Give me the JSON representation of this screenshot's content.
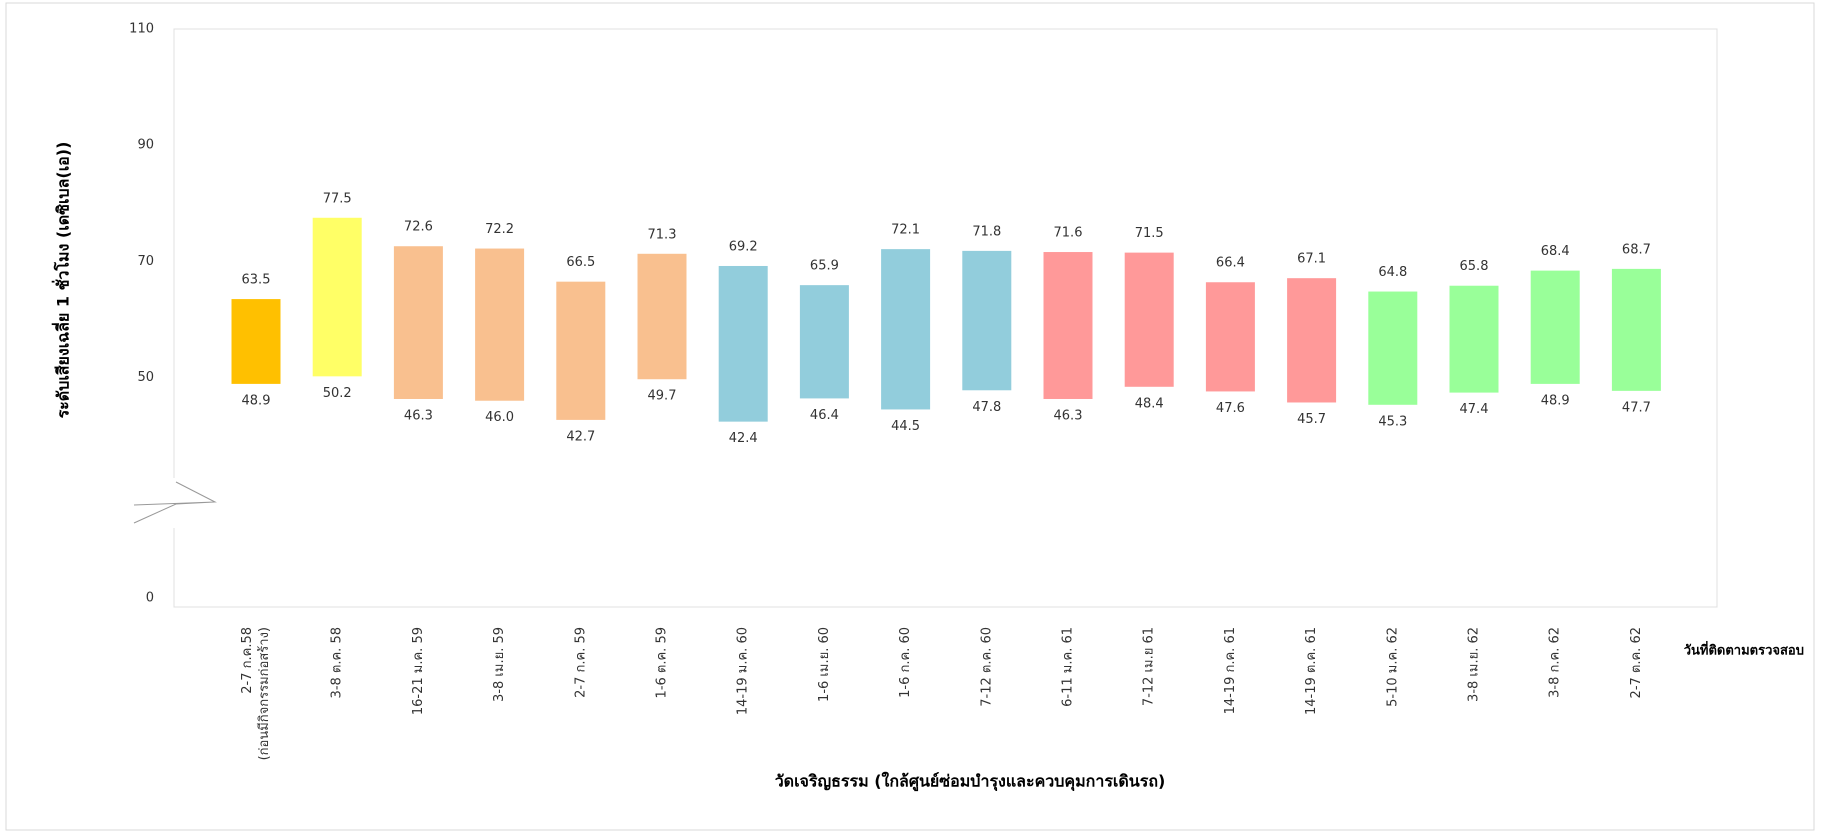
{
  "chart_data": {
    "type": "range_bar",
    "y_label": "ระดับเสียงเฉลี่ย 1 ชั่วโมง (เดซิเบล(เอ))",
    "x_label": "วัดเจริญธรรม (ใกล้ศูนย์ซ่อมบำรุงและควบคุมการเดินรถ)",
    "x_axis_note": "วันที่ติดตามตรวจสอบ",
    "categories": [
      [
        "2-7 ก.ค.58",
        "(ก่อนมีกิจกรรมก่อสร้าง)"
      ],
      "3-8 ต.ค. 58",
      "16-21 ม.ค. 59",
      "3-8 เม.ย. 59",
      "2-7 ก.ค. 59",
      "1-6 ต.ค. 59",
      "14-19 ม.ค. 60",
      "1-6 เม.ย. 60",
      "1-6 ก.ค. 60",
      "7-12 ต.ค. 60",
      "6-11 ม.ค. 61",
      "7-12 เม.ย 61",
      "14-19 ก.ค. 61",
      "14-19 ต.ค. 61",
      "5-10 ม.ค. 62",
      "3-8 เม.ย. 62",
      "3-8 ก.ค. 62",
      "2-7 ต.ค. 62"
    ],
    "colors": [
      "#ffc000",
      "#ffff66",
      "#f9c08f",
      "#f9c08f",
      "#f9c08f",
      "#f9c08f",
      "#92cddc",
      "#92cddc",
      "#92cddc",
      "#92cddc",
      "#ff9999",
      "#ff9999",
      "#ff9999",
      "#ff9999",
      "#99ff99",
      "#99ff99",
      "#99ff99",
      "#99ff99"
    ],
    "high": {
      "values": [
        63.5,
        77.5,
        72.6,
        72.2,
        66.5,
        71.3,
        69.2,
        65.9,
        72.1,
        71.8,
        71.6,
        71.5,
        66.4,
        67.1,
        64.8,
        65.8,
        68.4,
        68.7
      ],
      "value_labels": [
        "63.5",
        "77.5",
        "72.6",
        "72.2",
        "66.5",
        "71.3",
        "69.2",
        "65.9",
        "72.1",
        "71.8",
        "71.6",
        "71.5",
        "66.4",
        "67.1",
        "64.8",
        "65.8",
        "68.4",
        "68.7"
      ]
    },
    "low": {
      "values": [
        48.9,
        50.2,
        46.3,
        46.0,
        42.7,
        49.7,
        42.4,
        46.4,
        44.5,
        47.8,
        46.3,
        48.4,
        47.6,
        45.7,
        45.3,
        47.4,
        48.9,
        47.7
      ],
      "value_labels": [
        "48.9",
        "50.2",
        "46.3",
        "46.0",
        "42.7",
        "49.7",
        "42.4",
        "46.4",
        "44.5",
        "47.8",
        "46.3",
        "48.4",
        "47.6",
        "45.7",
        "45.3",
        "47.4",
        "48.9",
        "47.7"
      ]
    },
    "ylim": [
      0,
      110
    ],
    "yticks": [
      0,
      50,
      70,
      90,
      110
    ],
    "axis_break": true
  }
}
